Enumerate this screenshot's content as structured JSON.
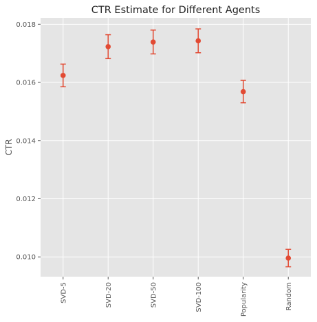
{
  "chart_data": {
    "type": "scatter",
    "title": "CTR Estimate for Different Agents",
    "xlabel": "",
    "ylabel": "CTR",
    "categories": [
      "SVD-5",
      "SVD-20",
      "SVD-50",
      "SVD-100",
      "Popularity",
      "Random"
    ],
    "values": [
      0.01624,
      0.01723,
      0.01739,
      0.01743,
      0.01568,
      0.00996
    ],
    "error_low": [
      0.01585,
      0.01682,
      0.01698,
      0.01702,
      0.0153,
      0.00966
    ],
    "error_high": [
      0.01663,
      0.01764,
      0.0178,
      0.01784,
      0.01607,
      0.01026
    ],
    "yticks": [
      "0.010",
      "0.012",
      "0.014",
      "0.016",
      "0.018"
    ],
    "ylim": [
      0.00932,
      0.01822
    ],
    "grid": true,
    "style": "ggplot",
    "marker_color": "#E24A33",
    "background_color": "#E5E5E5",
    "grid_color": "#FFFFFF"
  }
}
